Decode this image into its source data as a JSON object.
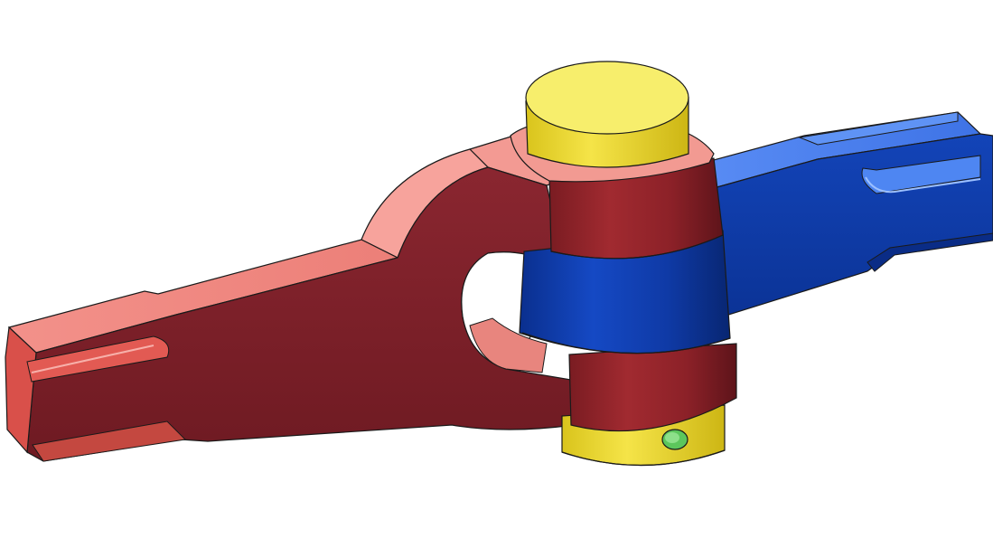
{
  "diagram": {
    "subject": "knuckle-joint-3d-model",
    "parts": {
      "fork": "fork-part",
      "eye": "eye-part",
      "pin": "knuckle-pin",
      "collar": "collar-part",
      "taper_pin": "taper-pin"
    },
    "colors": {
      "background": "#ffffff",
      "fork_side": "#7d2028",
      "fork_top": "#ee8680",
      "fork_light": "#f8aca6",
      "eye_side": "#0d3aa8",
      "eye_top": "#3b74e8",
      "eye_light": "#7aa6ff",
      "pin_side": "#f0df3a",
      "pin_top": "#f7ed6a",
      "collar": "#e8d22a",
      "taper_pin": "#58c25a",
      "outline": "#1a1a1a"
    }
  }
}
